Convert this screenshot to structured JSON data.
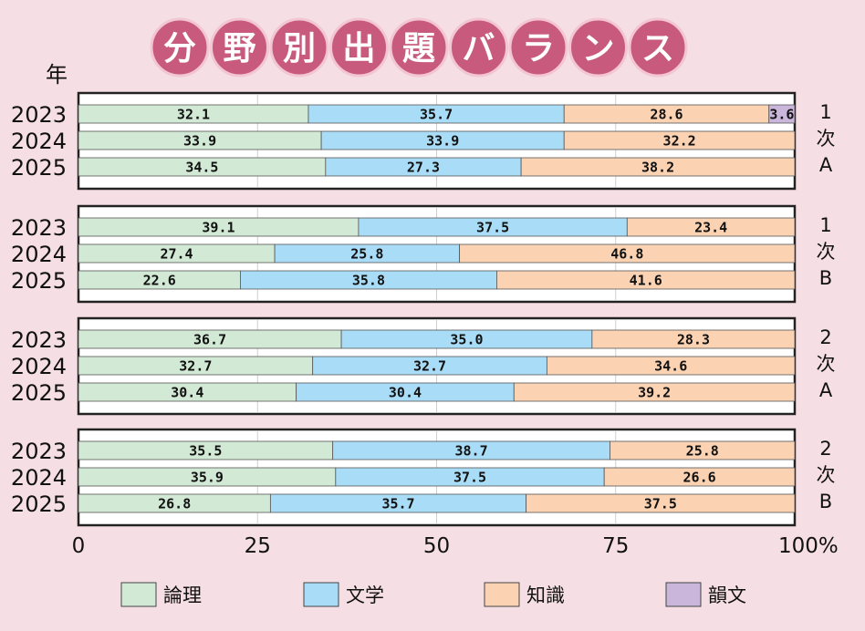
{
  "chart_data": {
    "type": "bar",
    "orientation": "horizontal",
    "stacked": true,
    "title": "分野別出題バランス",
    "year_axis_label": "年",
    "xlim": [
      0,
      100
    ],
    "x_ticks": [
      "0",
      "25",
      "50",
      "75",
      "100%"
    ],
    "series_names": [
      "論理",
      "文学",
      "知識",
      "韻文"
    ],
    "colors": {
      "論理": "#d2ead5",
      "文学": "#a9dcf6",
      "知識": "#fbd3b3",
      "韻文": "#c9b6da"
    },
    "groups": [
      {
        "label": [
          "1",
          "次",
          "A"
        ],
        "rows": [
          {
            "year": "2023",
            "values": [
              32.1,
              35.7,
              28.6,
              3.6
            ]
          },
          {
            "year": "2024",
            "values": [
              33.9,
              33.9,
              32.2,
              0
            ]
          },
          {
            "year": "2025",
            "values": [
              34.5,
              27.3,
              38.2,
              0
            ]
          }
        ]
      },
      {
        "label": [
          "1",
          "次",
          "B"
        ],
        "rows": [
          {
            "year": "2023",
            "values": [
              39.1,
              37.5,
              23.4,
              0
            ]
          },
          {
            "year": "2024",
            "values": [
              27.4,
              25.8,
              46.8,
              0
            ]
          },
          {
            "year": "2025",
            "values": [
              22.6,
              35.8,
              41.6,
              0
            ]
          }
        ]
      },
      {
        "label": [
          "2",
          "次",
          "A"
        ],
        "rows": [
          {
            "year": "2023",
            "values": [
              36.7,
              35.0,
              28.3,
              0
            ]
          },
          {
            "year": "2024",
            "values": [
              32.7,
              32.7,
              34.6,
              0
            ]
          },
          {
            "year": "2025",
            "values": [
              30.4,
              30.4,
              39.2,
              0
            ]
          }
        ]
      },
      {
        "label": [
          "2",
          "次",
          "B"
        ],
        "rows": [
          {
            "year": "2023",
            "values": [
              35.5,
              38.7,
              25.8,
              0
            ]
          },
          {
            "year": "2024",
            "values": [
              35.9,
              37.5,
              26.6,
              0
            ]
          },
          {
            "year": "2025",
            "values": [
              26.8,
              35.7,
              37.5,
              0
            ]
          }
        ]
      }
    ]
  }
}
